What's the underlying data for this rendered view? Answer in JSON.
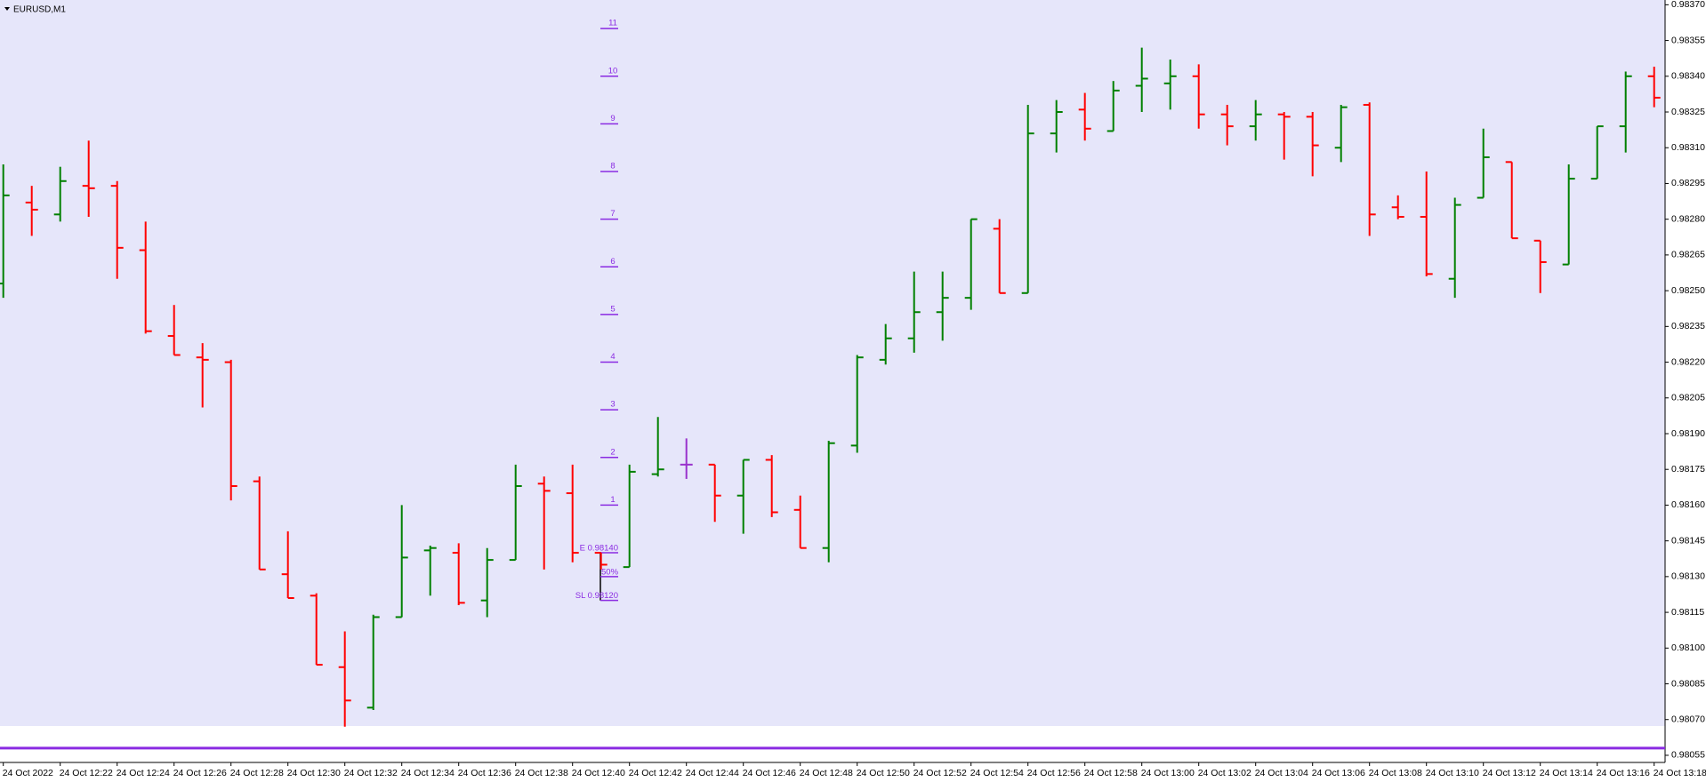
{
  "chart_data": {
    "type": "ohlc",
    "title": "EURUSD,M1",
    "categories": [
      "24 Oct 2022",
      null,
      "24 Oct 12:22",
      null,
      "24 Oct 12:24",
      null,
      "24 Oct 12:26",
      null,
      "24 Oct 12:28",
      null,
      "24 Oct 12:30",
      null,
      "24 Oct 12:32",
      null,
      "24 Oct 12:34",
      null,
      "24 Oct 12:36",
      null,
      "24 Oct 12:38",
      null,
      "24 Oct 12:40",
      null,
      "24 Oct 12:42",
      null,
      "24 Oct 12:44",
      null,
      "24 Oct 12:46",
      null,
      "24 Oct 12:48",
      null,
      "24 Oct 12:50",
      null,
      "24 Oct 12:52",
      null,
      "24 Oct 12:54",
      null,
      "24 Oct 12:56",
      null,
      "24 Oct 12:58",
      null,
      "24 Oct 13:00",
      null,
      "24 Oct 13:02",
      null,
      "24 Oct 13:04",
      null,
      "24 Oct 13:06",
      null,
      "24 Oct 13:08",
      null,
      "24 Oct 13:10",
      null,
      "24 Oct 13:12",
      null,
      "24 Oct 13:14",
      null,
      "24 Oct 13:16",
      null,
      "24 Oct 13:18"
    ],
    "open": [
      0.98253,
      0.98287,
      0.98282,
      0.98294,
      0.98294,
      0.98267,
      0.98231,
      0.98222,
      0.9822,
      0.9817,
      0.98131,
      0.98122,
      0.98092,
      0.98075,
      0.98113,
      0.98141,
      0.9814,
      0.9812,
      0.98137,
      0.98169,
      0.98165,
      0.9814,
      0.98134,
      0.98173,
      0.98177,
      0.98177,
      0.98164,
      0.98179,
      0.98158,
      0.98142,
      0.98185,
      0.98221,
      0.9823,
      0.98241,
      0.98247,
      0.98276,
      0.98249,
      0.98316,
      0.98326,
      0.98317,
      0.98336,
      0.98337,
      0.9834,
      0.98324,
      0.98319,
      0.98324,
      0.98323,
      0.9831,
      0.98328,
      0.98285,
      0.98281,
      0.98255,
      0.98289,
      0.98304,
      0.98271,
      0.98261,
      0.98297,
      0.98319,
      0.9834
    ],
    "high": [
      0.98303,
      0.98294,
      0.98302,
      0.98313,
      0.98296,
      0.98279,
      0.98244,
      0.98228,
      0.98221,
      0.98172,
      0.98149,
      0.98123,
      0.98107,
      0.98114,
      0.9816,
      0.98143,
      0.98144,
      0.98142,
      0.98177,
      0.98172,
      0.98177,
      0.9814,
      0.98177,
      0.98197,
      0.98188,
      0.98177,
      0.98179,
      0.98181,
      0.98164,
      0.98187,
      0.98223,
      0.98236,
      0.98258,
      0.98258,
      0.9828,
      0.9828,
      0.98328,
      0.9833,
      0.98333,
      0.98338,
      0.98352,
      0.98347,
      0.98345,
      0.98328,
      0.9833,
      0.98325,
      0.98325,
      0.98328,
      0.98329,
      0.9829,
      0.983,
      0.98289,
      0.98318,
      0.98304,
      0.98271,
      0.98303,
      0.98319,
      0.98342,
      0.98344
    ],
    "low": [
      0.98247,
      0.98273,
      0.98279,
      0.98281,
      0.98255,
      0.98232,
      0.98223,
      0.98201,
      0.98162,
      0.98133,
      0.98121,
      0.98093,
      0.98067,
      0.98074,
      0.98113,
      0.98122,
      0.98118,
      0.98113,
      0.98137,
      0.98133,
      0.98136,
      0.98133,
      0.98134,
      0.98172,
      0.98171,
      0.98153,
      0.98148,
      0.98155,
      0.98142,
      0.98136,
      0.98182,
      0.98219,
      0.98224,
      0.98229,
      0.98242,
      0.98249,
      0.98249,
      0.98308,
      0.98313,
      0.98317,
      0.98325,
      0.98326,
      0.98318,
      0.98311,
      0.98313,
      0.98305,
      0.98298,
      0.98304,
      0.98273,
      0.9828,
      0.98256,
      0.98247,
      0.98289,
      0.98272,
      0.98249,
      0.98261,
      0.98297,
      0.98308,
      0.98327
    ],
    "close": [
      0.9829,
      0.98284,
      0.98296,
      0.98293,
      0.98268,
      0.98233,
      0.98223,
      0.98221,
      0.98168,
      0.98133,
      0.98121,
      0.98093,
      0.98078,
      0.98113,
      0.98138,
      0.98142,
      0.98119,
      0.98137,
      0.98168,
      0.98166,
      0.9814,
      0.98135,
      0.98174,
      0.98175,
      0.98177,
      0.98164,
      0.98179,
      0.98157,
      0.98142,
      0.98186,
      0.98222,
      0.9823,
      0.98241,
      0.98247,
      0.9828,
      0.98249,
      0.98316,
      0.98325,
      0.98318,
      0.98334,
      0.98339,
      0.9834,
      0.98324,
      0.98319,
      0.98324,
      0.98323,
      0.98311,
      0.98327,
      0.98282,
      0.98281,
      0.98257,
      0.98286,
      0.98306,
      0.98272,
      0.98262,
      0.98297,
      0.98319,
      0.9834,
      0.98331
    ],
    "up_color": "#008000",
    "down_color": "#ff0000",
    "doji_color": "#9932cc",
    "ylim": [
      0.98052,
      0.98372
    ],
    "yticks": [
      {
        "value": 0.98055,
        "label": "0.98055"
      },
      {
        "value": 0.9807,
        "label": "0.98070"
      },
      {
        "value": 0.98085,
        "label": "0.98085"
      },
      {
        "value": 0.981,
        "label": "0.98100"
      },
      {
        "value": 0.98115,
        "label": "0.98115"
      },
      {
        "value": 0.9813,
        "label": "0.98130"
      },
      {
        "value": 0.98145,
        "label": "0.98145"
      },
      {
        "value": 0.9816,
        "label": "0.98160"
      },
      {
        "value": 0.98175,
        "label": "0.98175"
      },
      {
        "value": 0.9819,
        "label": "0.98190"
      },
      {
        "value": 0.98205,
        "label": "0.98205"
      },
      {
        "value": 0.9822,
        "label": "0.98220"
      },
      {
        "value": 0.98235,
        "label": "0.98235"
      },
      {
        "value": 0.9825,
        "label": "0.98250"
      },
      {
        "value": 0.98265,
        "label": "0.98265"
      },
      {
        "value": 0.9828,
        "label": "0.98280"
      },
      {
        "value": 0.98295,
        "label": "0.98295"
      },
      {
        "value": 0.9831,
        "label": "0.98310"
      },
      {
        "value": 0.98325,
        "label": "0.98325"
      },
      {
        "value": 0.9834,
        "label": "0.98340"
      },
      {
        "value": 0.98355,
        "label": "0.98355"
      },
      {
        "value": 0.9837,
        "label": "0.98370"
      }
    ],
    "grid": false,
    "levels": [
      {
        "label": "1",
        "price": 0.9816
      },
      {
        "label": "2",
        "price": 0.9818
      },
      {
        "label": "3",
        "price": 0.982
      },
      {
        "label": "4",
        "price": 0.9822
      },
      {
        "label": "5",
        "price": 0.9824
      },
      {
        "label": "6",
        "price": 0.9826
      },
      {
        "label": "7",
        "price": 0.9828
      },
      {
        "label": "8",
        "price": 0.983
      },
      {
        "label": "9",
        "price": 0.9832
      },
      {
        "label": "10",
        "price": 0.9834
      },
      {
        "label": "11",
        "price": 0.9836
      }
    ],
    "trade_levels": [
      {
        "label": "E 0.98140",
        "price": 0.9814
      },
      {
        "label": "50%",
        "price": 0.9813
      },
      {
        "label": "SL 0.98120",
        "price": 0.9812
      }
    ],
    "level_color": "#8a2be2",
    "hline": {
      "price": 0.98058,
      "color": "#8a2be2"
    }
  }
}
